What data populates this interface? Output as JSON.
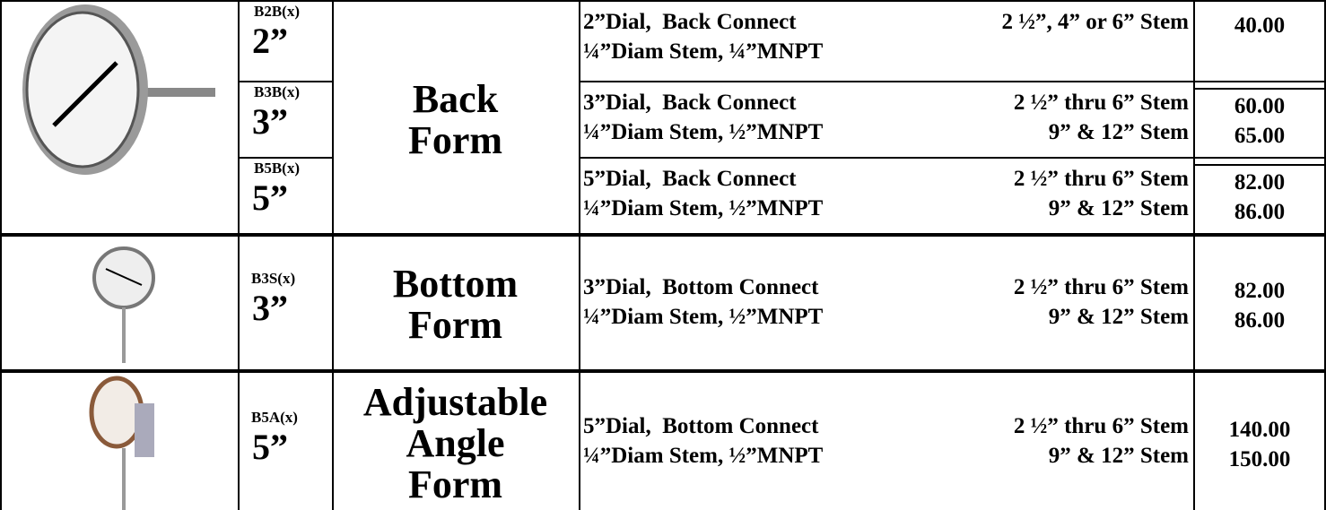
{
  "groups": [
    {
      "form": [
        "Back",
        "Form"
      ],
      "items": [
        {
          "model": "B2B(x)",
          "size": "2”",
          "desc": [
            "2”Dial,  Back Connect",
            "¼”Diam Stem, ¼”MNPT"
          ],
          "stem": [
            "2 ½”, 4” or 6” Stem"
          ],
          "prices": [
            "40.00"
          ]
        },
        {
          "model": "B3B(x)",
          "size": "3”",
          "desc": [
            "3”Dial,  Back Connect",
            "¼”Diam Stem, ½”MNPT"
          ],
          "stem": [
            "2 ½” thru 6” Stem",
            "9” & 12” Stem"
          ],
          "prices": [
            "60.00",
            "65.00"
          ]
        },
        {
          "model": "B5B(x)",
          "size": "5”",
          "desc": [
            "5”Dial,  Back Connect",
            "¼”Diam Stem, ½”MNPT"
          ],
          "stem": [
            "2 ½” thru 6” Stem",
            "9” & 12” Stem"
          ],
          "prices": [
            "82.00",
            "86.00"
          ]
        }
      ]
    },
    {
      "form": [
        "Bottom",
        "Form"
      ],
      "items": [
        {
          "model": "B3S(x)",
          "size": "3”",
          "desc": [
            "3”Dial,  Bottom Connect",
            "¼”Diam Stem, ½”MNPT"
          ],
          "stem": [
            "2 ½” thru 6” Stem",
            "9” & 12” Stem"
          ],
          "prices": [
            "82.00",
            "86.00"
          ]
        }
      ]
    },
    {
      "form": [
        "Adjustable",
        "Angle",
        "Form"
      ],
      "items": [
        {
          "model": "B5A(x)",
          "size": "5”",
          "desc": [
            "5”Dial,  Bottom Connect",
            "¼”Diam Stem, ½”MNPT"
          ],
          "stem": [
            "2 ½” thru 6” Stem",
            "9” & 12” Stem"
          ],
          "prices": [
            "140.00",
            "150.00"
          ]
        }
      ]
    }
  ]
}
